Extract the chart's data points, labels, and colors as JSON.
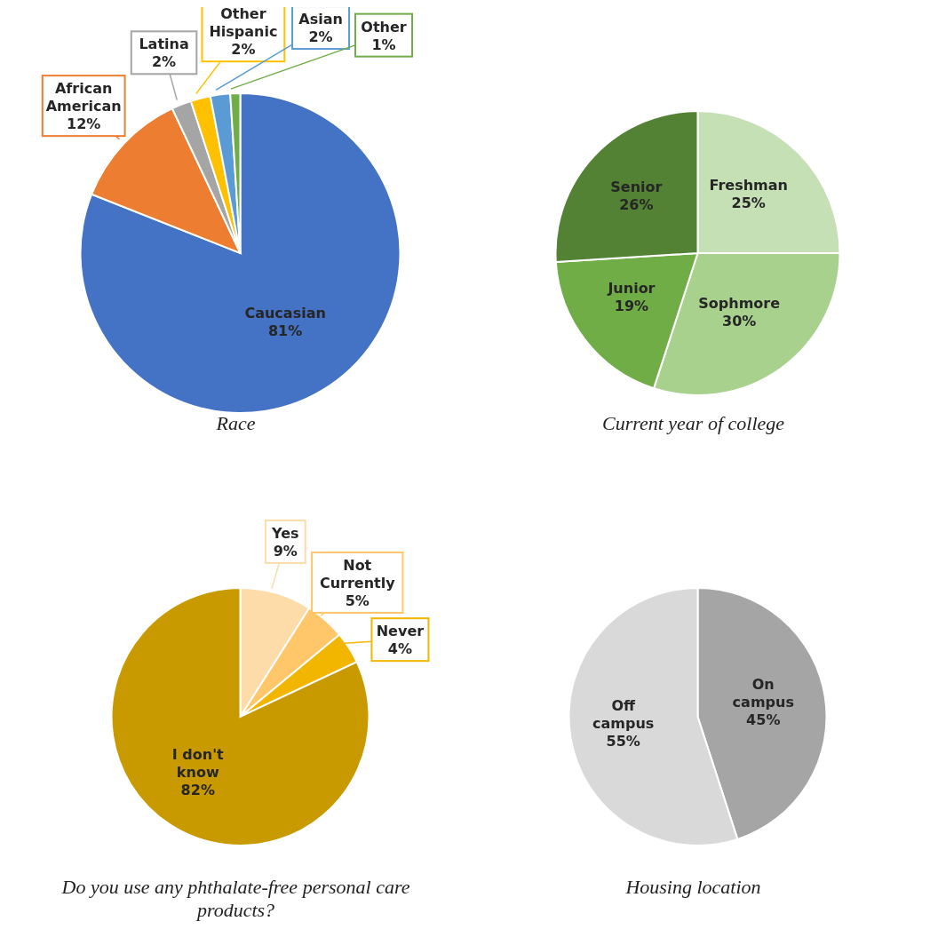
{
  "chart_data": [
    {
      "type": "pie",
      "title": "Race",
      "categories": [
        "Caucasian",
        "African American",
        "Latina",
        "Other Hispanic",
        "Asian",
        "Other"
      ],
      "values": [
        81,
        12,
        2,
        2,
        2,
        1
      ],
      "value_labels": [
        "81%",
        "12%",
        "2%",
        "2%",
        "2%",
        "1%"
      ],
      "colors": [
        "#4472c4",
        "#ed7d31",
        "#a5a5a5",
        "#ffc000",
        "#5b9bd5",
        "#70ad47"
      ]
    },
    {
      "type": "pie",
      "title": "Current year of college",
      "categories": [
        "Freshman",
        "Sophmore",
        "Junior",
        "Senior"
      ],
      "values": [
        25,
        30,
        19,
        26
      ],
      "value_labels": [
        "25%",
        "30%",
        "19%",
        "26%"
      ],
      "colors": [
        "#c5e0b4",
        "#a9d18e",
        "#70ad47",
        "#548235"
      ]
    },
    {
      "type": "pie",
      "title": "Do you use any phthalate-free personal care products?",
      "categories": [
        "Yes",
        "Not Currently",
        "Never",
        "I don't know"
      ],
      "values": [
        9,
        5,
        4,
        82
      ],
      "value_labels": [
        "9%",
        "5%",
        "4%",
        "82%"
      ],
      "colors": [
        "#fddcaa",
        "#ffc76a",
        "#f2b600",
        "#c89a00"
      ]
    },
    {
      "type": "pie",
      "title": "Housing location",
      "categories": [
        "On campus",
        "Off campus"
      ],
      "values": [
        45,
        55
      ],
      "value_labels": [
        "45%",
        "55%"
      ],
      "colors": [
        "#a5a5a5",
        "#d9d9d9"
      ]
    }
  ]
}
